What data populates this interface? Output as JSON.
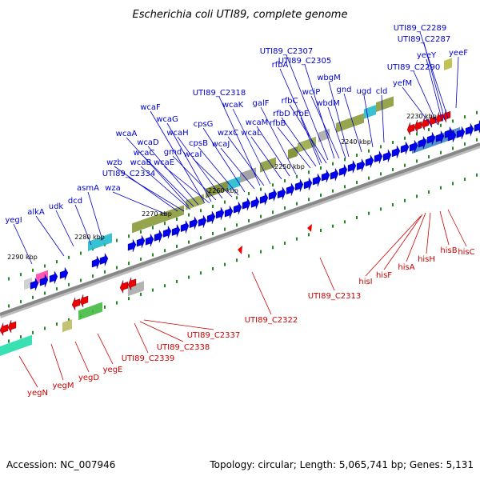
{
  "title": "Escherichia coli UTI89, complete genome",
  "footer": {
    "accession": "Accession: NC_007946",
    "summary": "Topology: circular; Length: 5,065,741 bp; Genes: 5,131"
  },
  "colors": {
    "forward_label": "#0000cc",
    "reverse_label": "#cc0000",
    "forward_gene": "#0000ee",
    "reverse_gene": "#ee0000",
    "backbone": "#888888",
    "tick": "#228822"
  },
  "scale_labels": [
    "2230 kbp",
    "2240 kbp",
    "2250 kbp",
    "2260 kbp",
    "2270 kbp",
    "2280 kbp",
    "2290 kbp"
  ],
  "forward_genes": [
    "yeeF",
    "UTI89_C2289",
    "UTI89_C2287",
    "yeeY",
    "UTI89_C2290",
    "yefM",
    "cld",
    "ugd",
    "gnd",
    "wbgM",
    "wbdM",
    "UTI89_C2307",
    "UTI89_C2305",
    "wciP",
    "rfbA",
    "rfbC",
    "rfbD",
    "rfbE",
    "rfbB",
    "galF",
    "wcaM",
    "wcaL",
    "wzxC",
    "wcaK",
    "UTI89_C2318",
    "wcaJ",
    "cpsB",
    "cpsG",
    "wcaI",
    "wcaH",
    "wcaF",
    "wcaG",
    "gmd",
    "wcaE",
    "wcaD",
    "wcaA",
    "wcaC",
    "wcaB",
    "wzb",
    "UTI89_C2334",
    "wza",
    "asmA",
    "dcd",
    "udk",
    "alkA",
    "yegI"
  ],
  "reverse_genes": [
    "hisC",
    "hisB",
    "hisH",
    "hisA",
    "hisF",
    "hisI",
    "UTI89_C2313",
    "UTI89_C2322",
    "UTI89_C2337",
    "UTI89_C2338",
    "UTI89_C2339",
    "yegE",
    "yegD",
    "yegM",
    "yegN"
  ]
}
